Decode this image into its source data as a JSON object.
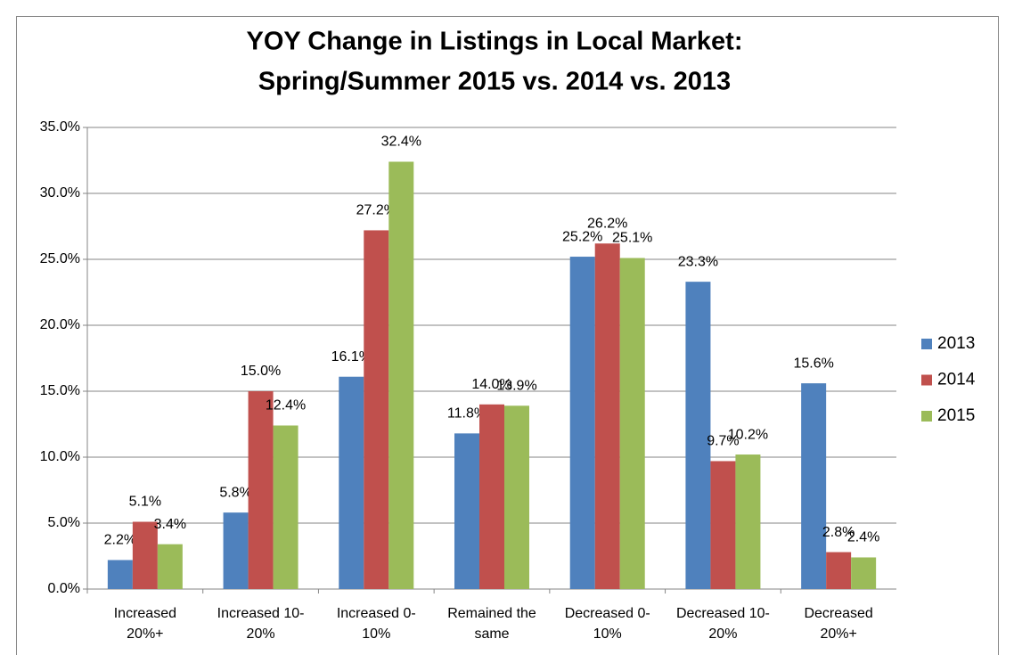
{
  "chart_data": {
    "type": "bar",
    "title": [
      "YOY Change in Listings in Local Market:",
      "Spring/Summer 2015 vs. 2014 vs. 2013"
    ],
    "categories": [
      [
        "Increased",
        "20%+"
      ],
      [
        "Increased 10-",
        "20%"
      ],
      [
        "Increased 0-",
        "10%"
      ],
      [
        "Remained the",
        "same"
      ],
      [
        "Decreased 0-",
        "10%"
      ],
      [
        "Decreased 10-",
        "20%"
      ],
      [
        "Decreased",
        "20%+"
      ]
    ],
    "series": [
      {
        "name": "2013",
        "color": "#4f81bd",
        "values": [
          2.2,
          5.8,
          16.1,
          11.8,
          25.2,
          23.3,
          15.6
        ],
        "value_labels": [
          "2.2%",
          "5.8%",
          "16.1%",
          "11.8%",
          "25.2%",
          "23.3%",
          "15.6%"
        ]
      },
      {
        "name": "2014",
        "color": "#c0504d",
        "values": [
          5.1,
          15.0,
          27.2,
          14.0,
          26.2,
          9.7,
          2.8
        ],
        "value_labels": [
          "5.1%",
          "15.0%",
          "27.2%",
          "14.0%",
          "26.2%",
          "9.7%",
          "2.8%"
        ]
      },
      {
        "name": "2015",
        "color": "#9bbb59",
        "values": [
          3.4,
          12.4,
          32.4,
          13.9,
          25.1,
          10.2,
          2.4
        ],
        "value_labels": [
          "3.4%",
          "12.4%",
          "32.4%",
          "13.9%",
          "25.1%",
          "10.2%",
          "2.4%"
        ]
      }
    ],
    "ylim": [
      0,
      35
    ],
    "yticks": [
      {
        "value": 0,
        "label": "0.0%"
      },
      {
        "value": 5,
        "label": "5.0%"
      },
      {
        "value": 10,
        "label": "10.0%"
      },
      {
        "value": 15,
        "label": "15.0%"
      },
      {
        "value": 20,
        "label": "20.0%"
      },
      {
        "value": 25,
        "label": "25.0%"
      },
      {
        "value": 30,
        "label": "30.0%"
      },
      {
        "value": 35,
        "label": "35.0%"
      }
    ],
    "grid": true,
    "legend": "right"
  }
}
